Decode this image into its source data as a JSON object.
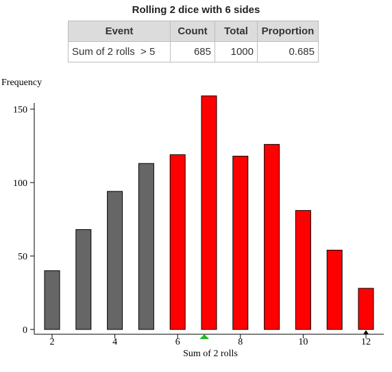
{
  "title": "Rolling 2 dice with 6 sides",
  "table": {
    "headers": [
      "Event",
      "Count",
      "Total",
      "Proportion"
    ],
    "row": {
      "event": "Sum of 2 rolls  > 5",
      "count": "685",
      "total": "1000",
      "proportion": "0.685"
    }
  },
  "colors": {
    "highlight": "#ff0000",
    "base": "#666666",
    "marker": "#22bb22"
  },
  "chart_data": {
    "type": "bar",
    "ylabel": "Frequency",
    "xlabel": "Sum of 2 rolls",
    "categories": [
      2,
      3,
      4,
      5,
      6,
      7,
      8,
      9,
      10,
      11,
      12
    ],
    "values": [
      40,
      68,
      94,
      113,
      119,
      159,
      118,
      126,
      81,
      54,
      28
    ],
    "highlighted": [
      false,
      false,
      false,
      false,
      true,
      true,
      true,
      true,
      true,
      true,
      true
    ],
    "xlim": [
      1.5,
      12.5
    ],
    "ylim": [
      0,
      160
    ],
    "xticks": [
      2,
      4,
      6,
      8,
      10,
      12
    ],
    "yticks": [
      0,
      50,
      100,
      150
    ],
    "threshold_marker": 6.85,
    "end_marker": 12
  }
}
